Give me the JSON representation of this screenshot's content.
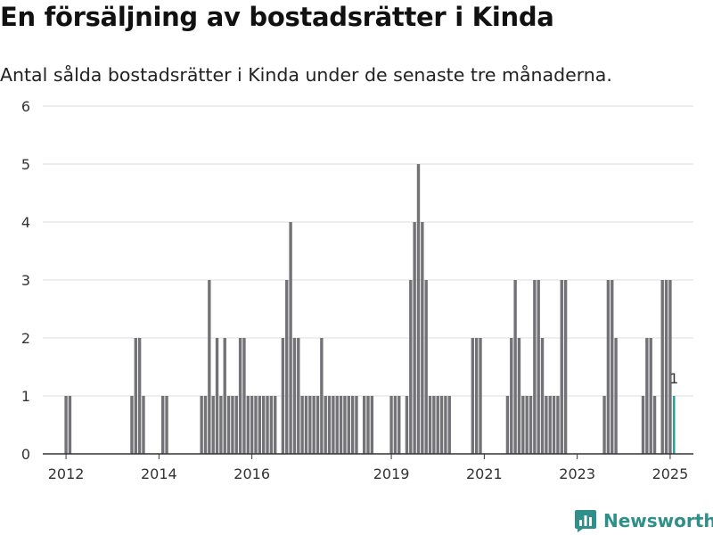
{
  "title": "En försäljning av bostadsrätter i Kinda",
  "subtitle": "Antal sålda bostadsrätter i Kinda under de senaste tre månaderna.",
  "brand": {
    "name": "Newsworthy",
    "icon": "newsworthy-logo-icon",
    "color": "#2f8f8a"
  },
  "colors": {
    "bar": "#737277",
    "highlight": "#2aa198",
    "grid": "#dddddd",
    "axis": "#333333"
  },
  "chart_data": {
    "type": "bar",
    "title": "En försäljning av bostadsrätter i Kinda",
    "subtitle": "Antal sålda bostadsrätter i Kinda under de senaste tre månaderna.",
    "xlabel": "",
    "ylabel": "",
    "ylim": [
      0,
      6
    ],
    "y_ticks": [
      "0",
      "1",
      "2",
      "3",
      "4",
      "5",
      "6"
    ],
    "x_tick_labels": [
      "2012",
      "2014",
      "2016",
      "2019",
      "2021",
      "2023",
      "2025"
    ],
    "x_ticks": [
      "2012-01",
      "2014-01",
      "2016-01",
      "2019-01",
      "2021-01",
      "2023-01",
      "2025-01"
    ],
    "x_range": [
      "2011-07",
      "2025-07"
    ],
    "grid": true,
    "highlight": {
      "x": "2025-02",
      "value": 1,
      "label": "1"
    },
    "x": [
      "2012-01",
      "2012-02",
      "2013-06",
      "2013-07",
      "2013-08",
      "2013-09",
      "2014-02",
      "2014-03",
      "2014-12",
      "2015-01",
      "2015-02",
      "2015-03",
      "2015-04",
      "2015-05",
      "2015-06",
      "2015-07",
      "2015-08",
      "2015-09",
      "2015-10",
      "2015-11",
      "2015-12",
      "2016-01",
      "2016-02",
      "2016-03",
      "2016-04",
      "2016-05",
      "2016-06",
      "2016-07",
      "2016-09",
      "2016-10",
      "2016-11",
      "2016-12",
      "2017-01",
      "2017-02",
      "2017-03",
      "2017-04",
      "2017-05",
      "2017-06",
      "2017-07",
      "2017-08",
      "2017-09",
      "2017-10",
      "2017-11",
      "2017-12",
      "2018-01",
      "2018-02",
      "2018-03",
      "2018-04",
      "2018-06",
      "2018-07",
      "2018-08",
      "2019-01",
      "2019-02",
      "2019-03",
      "2019-05",
      "2019-06",
      "2019-07",
      "2019-08",
      "2019-09",
      "2019-10",
      "2019-11",
      "2019-12",
      "2020-01",
      "2020-02",
      "2020-03",
      "2020-04",
      "2020-10",
      "2020-11",
      "2020-12",
      "2021-07",
      "2021-08",
      "2021-09",
      "2021-10",
      "2021-11",
      "2021-12",
      "2022-01",
      "2022-02",
      "2022-03",
      "2022-04",
      "2022-05",
      "2022-06",
      "2022-07",
      "2022-08",
      "2022-09",
      "2022-10",
      "2023-08",
      "2023-09",
      "2023-10",
      "2023-11",
      "2024-06",
      "2024-07",
      "2024-08",
      "2024-09",
      "2024-11",
      "2024-12",
      "2025-01",
      "2025-02"
    ],
    "values": [
      1,
      1,
      1,
      2,
      2,
      1,
      1,
      1,
      1,
      1,
      3,
      1,
      2,
      1,
      2,
      1,
      1,
      1,
      2,
      2,
      1,
      1,
      1,
      1,
      1,
      1,
      1,
      1,
      2,
      3,
      4,
      2,
      2,
      1,
      1,
      1,
      1,
      1,
      2,
      1,
      1,
      1,
      1,
      1,
      1,
      1,
      1,
      1,
      1,
      1,
      1,
      1,
      1,
      1,
      1,
      3,
      4,
      5,
      4,
      3,
      1,
      1,
      1,
      1,
      1,
      1,
      2,
      2,
      2,
      1,
      2,
      3,
      2,
      1,
      1,
      1,
      3,
      3,
      2,
      1,
      1,
      1,
      1,
      3,
      3,
      1,
      3,
      3,
      2,
      1,
      2,
      2,
      1,
      3,
      3,
      3,
      1
    ]
  }
}
